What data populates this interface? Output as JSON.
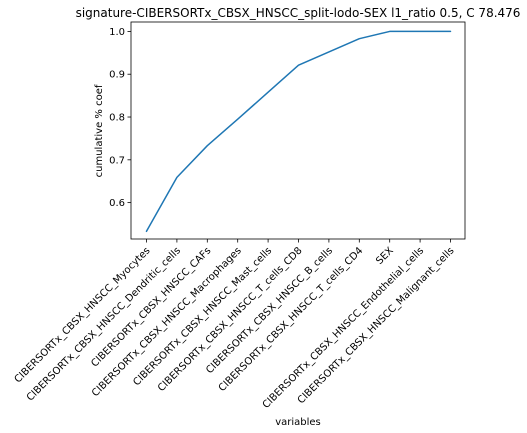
{
  "chart_data": {
    "type": "line",
    "title": "signature-CIBERSORTx_CBSX_HNSCC_split-lodo-SEX l1_ratio 0.5, C 78.476",
    "xlabel": "variables",
    "ylabel": "cumulative % coef",
    "categories": [
      "CIBERSORTx_CBSX_HNSCC_Myocytes",
      "CIBERSORTx_CBSX_HNSCC_Dendritic_cells",
      "CIBERSORTx_CBSX_HNSCC_CAFs",
      "CIBERSORTx_CBSX_HNSCC_Macrophages",
      "CIBERSORTx_CBSX_HNSCC_Mast_cells",
      "CIBERSORTx_CBSX_HNSCC_T_cells_CD8",
      "CIBERSORTx_CBSX_HNSCC_B_cells",
      "CIBERSORTx_CBSX_HNSCC_T_cells_CD4",
      "SEX",
      "CIBERSORTx_CBSX_HNSCC_Endothelial_cells",
      "CIBERSORTx_CBSX_HNSCC_Malignant_cells"
    ],
    "series": [
      {
        "values": [
          0.533,
          0.659,
          0.733,
          0.795,
          0.858,
          0.921,
          0.952,
          0.983,
          1.0,
          1.0,
          1.0
        ]
      }
    ],
    "ylim": [
      0.515,
      1.022
    ],
    "yticks": [
      0.6,
      0.7,
      0.8,
      0.9,
      1.0
    ],
    "ytick_labels": [
      "0.6",
      "0.7",
      "0.8",
      "0.9",
      "1.0"
    ],
    "grid": false,
    "line_color": "#1f77b4"
  }
}
